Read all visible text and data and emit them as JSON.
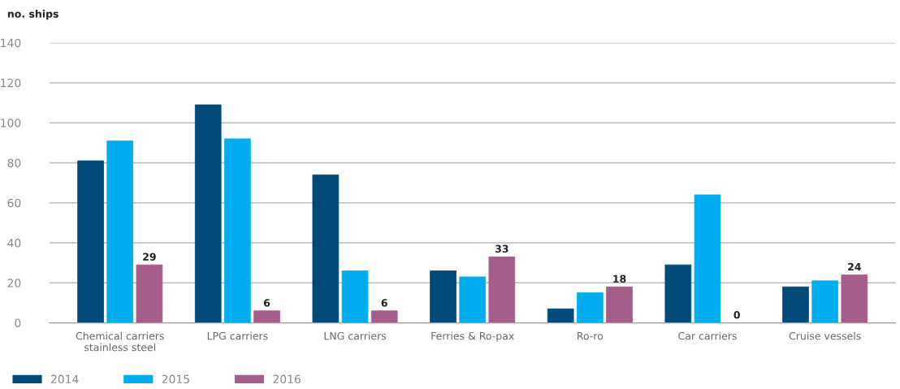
{
  "chart_data": {
    "type": "bar",
    "ylabel": "no. ships",
    "categories": [
      "Chemical carriers\nstainless steel",
      "LPG carriers",
      "LNG carriers",
      "Ferries & Ro-pax",
      "Ro-ro",
      "Car carriers",
      "Cruise vessels"
    ],
    "series": [
      {
        "name": "2014",
        "color": "#004a7a",
        "values": [
          81,
          109,
          74,
          26,
          7,
          29,
          18
        ]
      },
      {
        "name": "2015",
        "color": "#00aeef",
        "values": [
          91,
          92,
          26,
          23,
          15,
          64,
          21
        ]
      },
      {
        "name": "2016",
        "color": "#a55d8c",
        "values": [
          29,
          6,
          6,
          33,
          18,
          0,
          24
        ],
        "value_labels": [
          "29",
          "6",
          "6",
          "33",
          "18",
          "0",
          "24"
        ]
      }
    ],
    "ylim": [
      0,
      140
    ],
    "yticks": [
      0,
      20,
      40,
      60,
      80,
      100,
      120,
      140
    ],
    "grid": "y",
    "legend": "bottom left"
  }
}
